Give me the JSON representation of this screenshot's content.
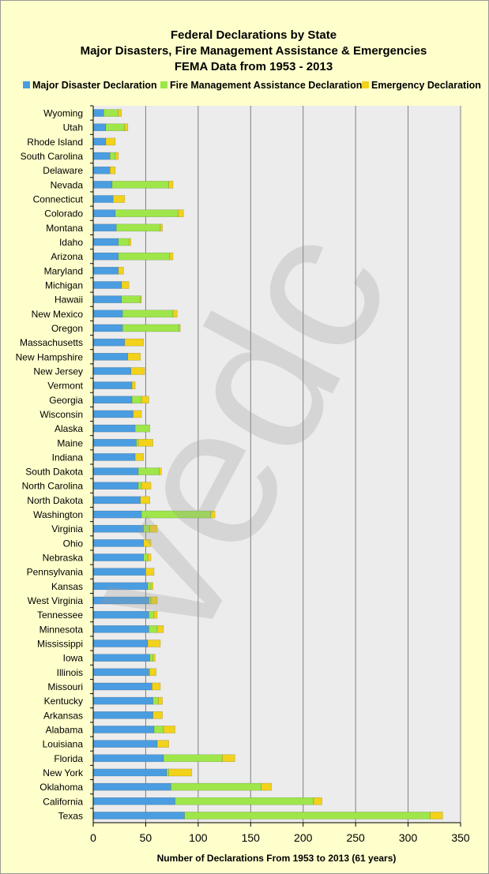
{
  "colors": {
    "page_bg": "#ffffcc",
    "plot_bg": "#ececec",
    "gridline": "#7f7f7f",
    "major_disaster": "#4a9de0",
    "fire_management": "#9ee64a",
    "emergency": "#f2d21a"
  },
  "chart_data": {
    "type": "bar",
    "orientation": "horizontal",
    "stacked": true,
    "title_lines": [
      "Federal Declarations by State",
      "Major Disasters, Fire Management Assistance & Emergencies",
      "FEMA Data from 1953 - 2013"
    ],
    "xlabel": "Number of Declarations From 1953 to 2013 (61 years)",
    "ylabel": "",
    "xlim": [
      0,
      350
    ],
    "x_ticks": [
      0,
      50,
      100,
      150,
      200,
      250,
      300,
      350
    ],
    "grid": "vertical",
    "legend_position": "top",
    "watermark": "vedc",
    "categories": [
      "Wyoming",
      "Utah",
      "Rhode Island",
      "South Carolina",
      "Delaware",
      "Nevada",
      "Connecticut",
      "Colorado",
      "Montana",
      "Idaho",
      "Arizona",
      "Maryland",
      "Michigan",
      "Hawaii",
      "New Mexico",
      "Oregon",
      "Massachusetts",
      "New Hampshire",
      "New Jersey",
      "Vermont",
      "Georgia",
      "Wisconsin",
      "Alaska",
      "Maine",
      "Indiana",
      "South Dakota",
      "North Carolina",
      "North Dakota",
      "Washington",
      "Virginia",
      "Ohio",
      "Nebraska",
      "Pennsylvania",
      "Kansas",
      "West Virginia",
      "Tennessee",
      "Minnesota",
      "Mississippi",
      "Iowa",
      "Illinois",
      "Missouri",
      "Kentucky",
      "Arkansas",
      "Alabama",
      "Louisiana",
      "Florida",
      "New York",
      "Oklahoma",
      "California",
      "Texas"
    ],
    "series": [
      {
        "name": "Major Disaster Declaration",
        "values": [
          10,
          12,
          12,
          16,
          16,
          18,
          19,
          21,
          22,
          24,
          24,
          24,
          27,
          27,
          28,
          28,
          30,
          33,
          36,
          37,
          37,
          38,
          40,
          41,
          40,
          43,
          43,
          45,
          46,
          48,
          48,
          48,
          50,
          52,
          53,
          53,
          53,
          52,
          54,
          53,
          56,
          57,
          57,
          58,
          61,
          67,
          70,
          74,
          78,
          87
        ]
      },
      {
        "name": "Fire Management Assistance Declaration",
        "values": [
          14,
          18,
          0,
          5,
          0,
          54,
          0,
          60,
          42,
          10,
          49,
          0,
          0,
          18,
          48,
          54,
          0,
          0,
          0,
          0,
          9,
          0,
          14,
          2,
          0,
          20,
          3,
          0,
          66,
          6,
          0,
          4,
          0,
          3,
          2,
          5,
          8,
          0,
          3,
          1,
          0,
          5,
          0,
          9,
          0,
          56,
          2,
          86,
          132,
          234
        ]
      },
      {
        "name": "Emergency Declaration",
        "values": [
          3,
          3,
          9,
          3,
          5,
          4,
          11,
          5,
          2,
          2,
          3,
          5,
          7,
          1,
          4,
          1,
          18,
          12,
          13,
          3,
          7,
          8,
          0,
          14,
          8,
          2,
          9,
          9,
          4,
          7,
          7,
          3,
          8,
          2,
          6,
          3,
          6,
          12,
          2,
          6,
          8,
          4,
          9,
          11,
          11,
          12,
          22,
          10,
          8,
          12
        ]
      }
    ]
  }
}
